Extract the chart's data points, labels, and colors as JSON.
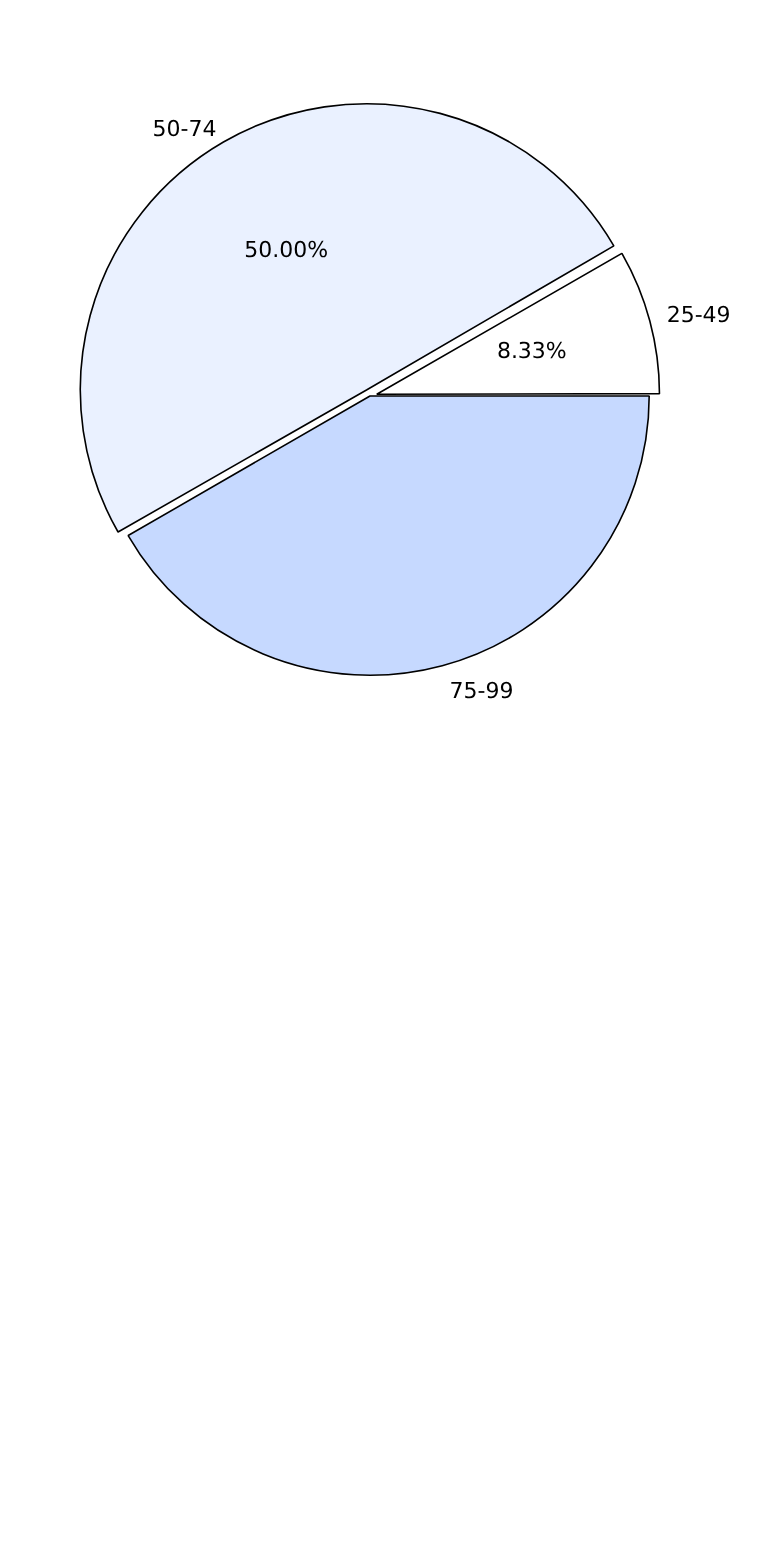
{
  "chart_data": {
    "type": "pie",
    "categories": [
      "25-49",
      "50-74",
      "75-99"
    ],
    "values": [
      8.33,
      50.0,
      41.67
    ],
    "colors": [
      "#ffffff",
      "#eaf1ff",
      "#c6d9ff"
    ],
    "value_labels": [
      "8.33%",
      "50.00%",
      null
    ],
    "legend": false
  }
}
